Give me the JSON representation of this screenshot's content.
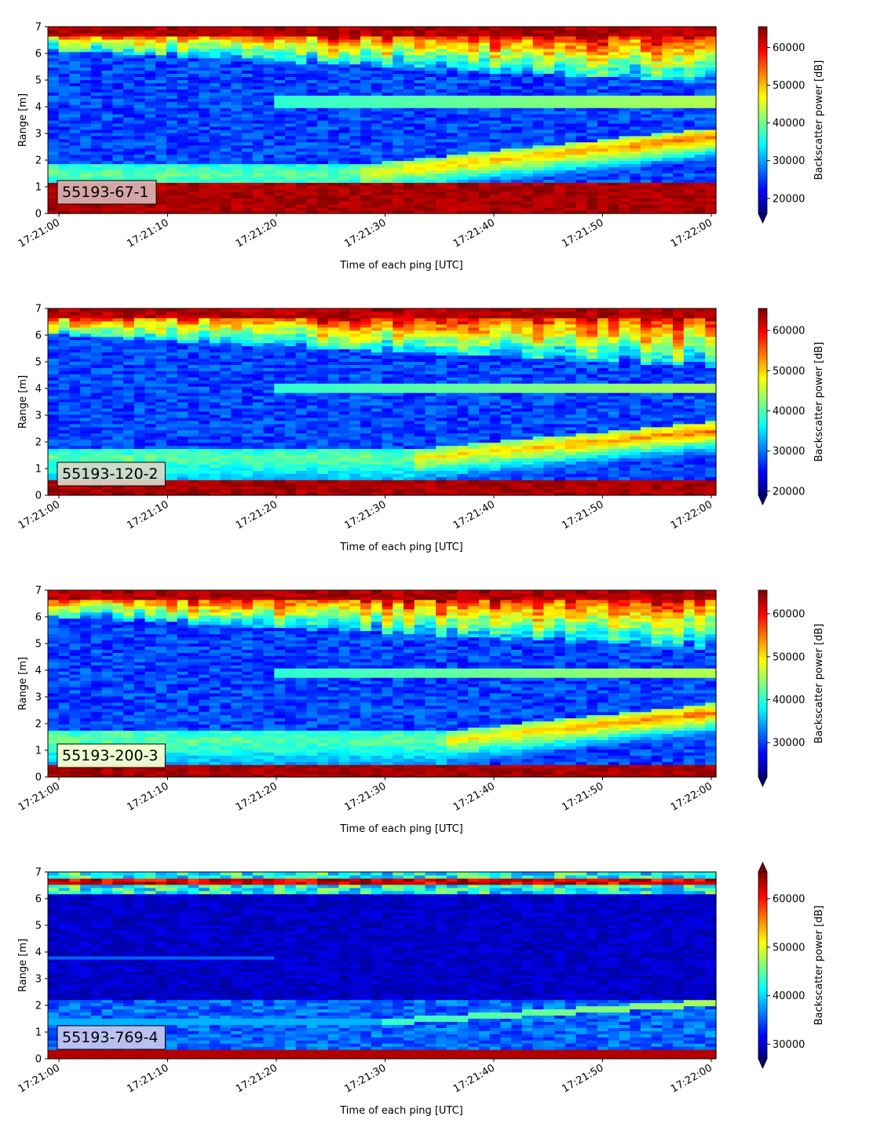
{
  "colors": {
    "jet_stops": [
      "#00007f",
      "#0000ff",
      "#007fff",
      "#00ffff",
      "#7fff7f",
      "#ffff00",
      "#ff7f00",
      "#ff0000",
      "#7f0000"
    ],
    "label_box_colors": [
      "#d9b3b3",
      "#d9d9c8",
      "#ffffcc",
      "#c8c8f0"
    ]
  },
  "chart_data": [
    {
      "type": "heatmap",
      "label": "55193-67-1",
      "xlabel": "Time of each ping [UTC]",
      "ylabel": "Range [m]",
      "x_ticks": [
        "17:21:00",
        "17:21:10",
        "17:21:20",
        "17:21:30",
        "17:21:40",
        "17:21:50",
        "17:22:00"
      ],
      "x_range_seconds": [
        0,
        60
      ],
      "y_ticks": [
        "0",
        "1",
        "2",
        "3",
        "4",
        "5",
        "6",
        "7"
      ],
      "ylim": [
        0,
        7
      ],
      "colorbar": {
        "label": "Backscatter power [dB]",
        "ticks": [
          "20000",
          "30000",
          "40000",
          "50000",
          "60000"
        ],
        "range": [
          16000,
          65500
        ],
        "extend": "min"
      },
      "features": {
        "bottom_band_top_m": 1.15,
        "rising_layer_start_m": 1.5,
        "rising_layer_end_m": 2.85,
        "rising_layer_start_s": 28,
        "upper_layer_m": 4.2,
        "top_band_m": 6.3
      }
    },
    {
      "type": "heatmap",
      "label": "55193-120-2",
      "xlabel": "Time of each ping [UTC]",
      "ylabel": "Range [m]",
      "x_ticks": [
        "17:21:00",
        "17:21:10",
        "17:21:20",
        "17:21:30",
        "17:21:40",
        "17:21:50",
        "17:22:00"
      ],
      "x_range_seconds": [
        0,
        60
      ],
      "y_ticks": [
        "0",
        "1",
        "2",
        "3",
        "4",
        "5",
        "6",
        "7"
      ],
      "ylim": [
        0,
        7
      ],
      "colorbar": {
        "label": "Backscatter power [dB]",
        "ticks": [
          "20000",
          "30000",
          "40000",
          "50000",
          "60000"
        ],
        "range": [
          19000,
          65500
        ],
        "extend": "min"
      },
      "features": {
        "bottom_band_top_m": 0.55,
        "rising_layer_start_m": 1.4,
        "rising_layer_end_m": 2.4,
        "rising_layer_start_s": 33,
        "upper_layer_m": 4.0,
        "top_band_m": 6.2
      }
    },
    {
      "type": "heatmap",
      "label": "55193-200-3",
      "xlabel": "Time of each ping [UTC]",
      "ylabel": "Range [m]",
      "x_ticks": [
        "17:21:00",
        "17:21:10",
        "17:21:20",
        "17:21:30",
        "17:21:40",
        "17:21:50",
        "17:22:00"
      ],
      "x_range_seconds": [
        0,
        60
      ],
      "y_ticks": [
        "0",
        "1",
        "2",
        "3",
        "4",
        "5",
        "6",
        "7"
      ],
      "ylim": [
        0,
        7
      ],
      "colorbar": {
        "label": "Backscatter power [dB]",
        "ticks": [
          "30000",
          "40000",
          "50000",
          "60000"
        ],
        "range": [
          22000,
          65500
        ],
        "extend": "min"
      },
      "features": {
        "bottom_band_top_m": 0.5,
        "rising_layer_start_m": 1.4,
        "rising_layer_end_m": 2.4,
        "rising_layer_start_s": 36,
        "upper_layer_m": 3.9,
        "top_band_m": 6.2
      }
    },
    {
      "type": "heatmap",
      "label": "55193-769-4",
      "xlabel": "Time of each ping [UTC]",
      "ylabel": "Range [m]",
      "x_ticks": [
        "17:21:00",
        "17:21:10",
        "17:21:20",
        "17:21:30",
        "17:21:40",
        "17:21:50",
        "17:22:00"
      ],
      "x_range_seconds": [
        0,
        60
      ],
      "y_ticks": [
        "0",
        "1",
        "2",
        "3",
        "4",
        "5",
        "6",
        "7"
      ],
      "ylim": [
        0,
        7
      ],
      "colorbar": {
        "label": "Backscatter power [dB]",
        "ticks": [
          "30000",
          "40000",
          "50000",
          "60000"
        ],
        "range": [
          27000,
          65500
        ],
        "extend": "both"
      },
      "features": {
        "bottom_band_top_m": 0.3,
        "rising_layer_start_m": 1.4,
        "rising_layer_end_m": 2.1,
        "rising_layer_start_s": 30,
        "upper_layer_m": 3.8,
        "top_band_m": 6.5
      }
    }
  ]
}
